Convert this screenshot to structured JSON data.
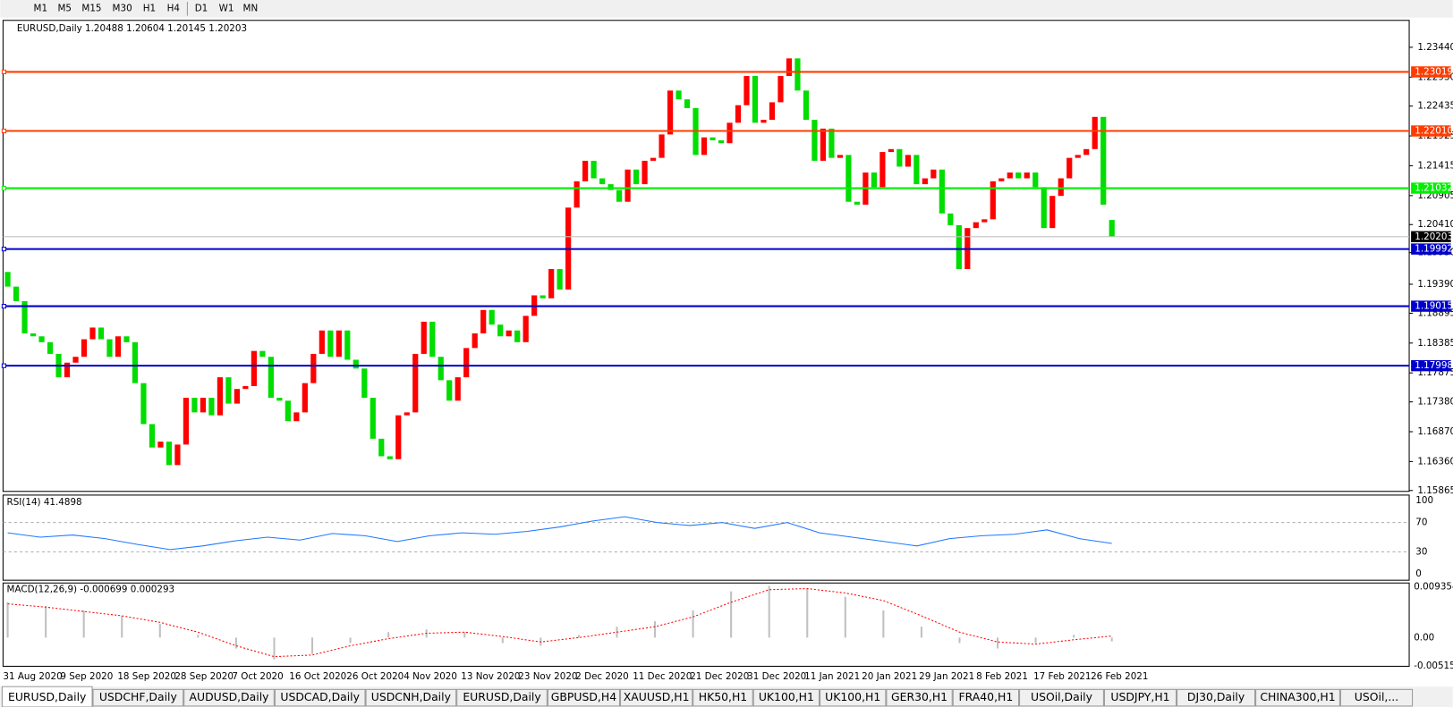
{
  "toolbar": {
    "timeframes": [
      "M1",
      "M5",
      "M15",
      "M30",
      "H1",
      "H4",
      "D1",
      "W1",
      "MN"
    ]
  },
  "chart": {
    "header": "EURUSD,Daily  1.20488 1.20604 1.20145 1.20203",
    "ylim": [
      1.1585,
      1.239
    ],
    "yticks": [
      {
        "value": 1.2344,
        "label": "1.23440"
      },
      {
        "value": 1.2293,
        "label": "1.22930"
      },
      1.22435,
      1.21925,
      1.21415,
      1.20905,
      {
        "value": 1.2041,
        "label": "1.20410"
      },
      {
        "value": 1.1993,
        "label": "1.19930"
      },
      {
        "value": 1.1939,
        "label": "1.19390"
      },
      1.18895,
      1.18385,
      1.17875,
      {
        "value": 1.1738,
        "label": "1.17380"
      },
      {
        "value": 1.1687,
        "label": "1.16870"
      },
      {
        "value": 1.1636,
        "label": "1.16360"
      },
      1.15865
    ],
    "up_color": "#ff0000",
    "down_color": "#00dd00",
    "candles": [
      [
        1.196,
        1.1935
      ],
      [
        1.1935,
        1.191
      ],
      [
        1.191,
        1.1855
      ],
      [
        1.1855,
        1.185
      ],
      [
        1.185,
        1.184
      ],
      [
        1.184,
        1.182
      ],
      [
        1.182,
        1.178
      ],
      [
        1.178,
        1.1805
      ],
      [
        1.1805,
        1.1815
      ],
      [
        1.1815,
        1.1845
      ],
      [
        1.1845,
        1.1865
      ],
      [
        1.1865,
        1.1845
      ],
      [
        1.1845,
        1.1815
      ],
      [
        1.1815,
        1.185
      ],
      [
        1.185,
        1.184
      ],
      [
        1.184,
        1.177
      ],
      [
        1.177,
        1.17
      ],
      [
        1.17,
        1.166
      ],
      [
        1.166,
        1.167
      ],
      [
        1.167,
        1.163
      ],
      [
        1.163,
        1.1665
      ],
      [
        1.1665,
        1.1745
      ],
      [
        1.1745,
        1.172
      ],
      [
        1.172,
        1.1745
      ],
      [
        1.1745,
        1.1715
      ],
      [
        1.1715,
        1.178
      ],
      [
        1.178,
        1.1735
      ],
      [
        1.1735,
        1.176
      ],
      [
        1.176,
        1.1765
      ],
      [
        1.1765,
        1.1825
      ],
      [
        1.1825,
        1.1815
      ],
      [
        1.1815,
        1.1745
      ],
      [
        1.1745,
        1.174
      ],
      [
        1.174,
        1.1705
      ],
      [
        1.1705,
        1.172
      ],
      [
        1.172,
        1.177
      ],
      [
        1.177,
        1.182
      ],
      [
        1.182,
        1.186
      ],
      [
        1.186,
        1.1815
      ],
      [
        1.1815,
        1.186
      ],
      [
        1.186,
        1.181
      ],
      [
        1.181,
        1.1795
      ],
      [
        1.1795,
        1.1745
      ],
      [
        1.1745,
        1.1675
      ],
      [
        1.1675,
        1.1645
      ],
      [
        1.1645,
        1.164
      ],
      [
        1.164,
        1.1715
      ],
      [
        1.1715,
        1.172
      ],
      [
        1.172,
        1.182
      ],
      [
        1.182,
        1.1875
      ],
      [
        1.1875,
        1.1815
      ],
      [
        1.1815,
        1.1775
      ],
      [
        1.1775,
        1.174
      ],
      [
        1.174,
        1.178
      ],
      [
        1.178,
        1.183
      ],
      [
        1.183,
        1.1855
      ],
      [
        1.1855,
        1.1895
      ],
      [
        1.1895,
        1.187
      ],
      [
        1.187,
        1.185
      ],
      [
        1.185,
        1.186
      ],
      [
        1.186,
        1.184
      ],
      [
        1.184,
        1.1885
      ],
      [
        1.1885,
        1.192
      ],
      [
        1.192,
        1.1915
      ],
      [
        1.1915,
        1.1965
      ],
      [
        1.1965,
        1.193
      ],
      [
        1.193,
        1.207
      ],
      [
        1.207,
        1.2115
      ],
      [
        1.2115,
        1.215
      ],
      [
        1.215,
        1.212
      ],
      [
        1.212,
        1.211
      ],
      [
        1.211,
        1.21
      ],
      [
        1.21,
        1.208
      ],
      [
        1.208,
        1.2135
      ],
      [
        1.2135,
        1.211
      ],
      [
        1.211,
        1.215
      ],
      [
        1.215,
        1.2155
      ],
      [
        1.2155,
        1.2195
      ],
      [
        1.2195,
        1.227
      ],
      [
        1.227,
        1.2255
      ],
      [
        1.2255,
        1.224
      ],
      [
        1.224,
        1.216
      ],
      [
        1.216,
        1.219
      ],
      [
        1.219,
        1.2185
      ],
      [
        1.2185,
        1.218
      ],
      [
        1.218,
        1.2215
      ],
      [
        1.2215,
        1.2245
      ],
      [
        1.2245,
        1.2295
      ],
      [
        1.2295,
        1.2215
      ],
      [
        1.2215,
        1.222
      ],
      [
        1.222,
        1.225
      ],
      [
        1.225,
        1.2295
      ],
      [
        1.2295,
        1.2325
      ],
      [
        1.2325,
        1.227
      ],
      [
        1.227,
        1.222
      ],
      [
        1.222,
        1.215
      ],
      [
        1.215,
        1.2205
      ],
      [
        1.2205,
        1.2155
      ],
      [
        1.2155,
        1.216
      ],
      [
        1.216,
        1.208
      ],
      [
        1.208,
        1.2075
      ],
      [
        1.2075,
        1.213
      ],
      [
        1.213,
        1.2105
      ],
      [
        1.2105,
        1.2165
      ],
      [
        1.2165,
        1.217
      ],
      [
        1.217,
        1.214
      ],
      [
        1.214,
        1.216
      ],
      [
        1.216,
        1.211
      ],
      [
        1.211,
        1.212
      ],
      [
        1.212,
        1.2135
      ],
      [
        1.2135,
        1.206
      ],
      [
        1.206,
        1.204
      ],
      [
        1.204,
        1.1965
      ],
      [
        1.1965,
        1.2035
      ],
      [
        1.2035,
        1.2045
      ],
      [
        1.2045,
        1.205
      ],
      [
        1.205,
        1.2115
      ],
      [
        1.2115,
        1.212
      ],
      [
        1.212,
        1.213
      ],
      [
        1.213,
        1.212
      ],
      [
        1.212,
        1.213
      ],
      [
        1.213,
        1.2105
      ],
      [
        1.2105,
        1.2035
      ],
      [
        1.2035,
        1.209
      ],
      [
        1.209,
        1.212
      ],
      [
        1.212,
        1.2155
      ],
      [
        1.2155,
        1.216
      ],
      [
        1.216,
        1.217
      ],
      [
        1.217,
        1.2225
      ],
      [
        1.2225,
        1.2075
      ],
      [
        1.20488,
        1.20203
      ]
    ],
    "levels": [
      {
        "value": 1.23019,
        "color": "#ff3c00"
      },
      {
        "value": 1.2201,
        "label": "1.22010",
        "color": "#ff3c00"
      },
      {
        "value": 1.21032,
        "color": "#00ee00"
      },
      {
        "value": 1.19992,
        "color": "#0000cc"
      },
      {
        "value": 1.19015,
        "color": "#0000cc"
      },
      {
        "value": 1.17998,
        "color": "#0000cc"
      }
    ],
    "current_price": 1.20203,
    "x_labels": [
      "31 Aug 2020",
      "9 Sep 2020",
      "18 Sep 2020",
      "28 Sep 2020",
      "7 Oct 2020",
      "16 Oct 2020",
      "26 Oct 2020",
      "4 Nov 2020",
      "13 Nov 2020",
      "23 Nov 2020",
      "2 Dec 2020",
      "11 Dec 2020",
      "21 Dec 2020",
      "31 Dec 2020",
      "11 Jan 2021",
      "20 Jan 2021",
      "29 Jan 2021",
      "8 Feb 2021",
      "17 Feb 2021",
      "26 Feb 2021"
    ]
  },
  "rsi": {
    "header": "RSI(14) 41.4898",
    "ylim": [
      -8.9,
      107.6
    ],
    "yticks": [
      100,
      70,
      30,
      0
    ],
    "color": "#1e78ff",
    "values": [
      56,
      50,
      53,
      48,
      40,
      33,
      38,
      45,
      50,
      46,
      55,
      52,
      44,
      52,
      56,
      54,
      58,
      64,
      72,
      78,
      70,
      66,
      70,
      62,
      70,
      56,
      50,
      44,
      38,
      48,
      52,
      54,
      60,
      48,
      41.4898
    ]
  },
  "macd": {
    "header": "MACD(12,26,9) -0.000699 0.000293",
    "ylim": [
      -0.00527,
      0.01003
    ],
    "yticks": [
      0.009354,
      {
        "value": 0,
        "label": "0.00"
      },
      -0.005156
    ],
    "histogram_color": "#c0c0c0",
    "signal_color": "#ff0000",
    "histogram": [
      0.0065,
      0.0058,
      0.005,
      0.004,
      0.0025,
      0.0005,
      -0.002,
      -0.004,
      -0.003,
      -0.001,
      0.001,
      0.0015,
      0.001,
      -0.001,
      -0.0015,
      0.0005,
      0.002,
      0.003,
      0.005,
      0.0085,
      0.0095,
      0.009,
      0.0075,
      0.005,
      0.002,
      -0.001,
      -0.002,
      -0.001,
      0.0005,
      -0.000699
    ],
    "signal": [
      0.0062,
      0.0056,
      0.0048,
      0.004,
      0.0028,
      0.001,
      -0.0015,
      -0.0035,
      -0.0032,
      -0.0015,
      -0.0002,
      0.0008,
      0.001,
      0.0002,
      -0.0008,
      0,
      0.001,
      0.002,
      0.0038,
      0.0065,
      0.0088,
      0.009,
      0.0082,
      0.0068,
      0.004,
      0.001,
      -0.0008,
      -0.0012,
      -0.0004,
      0.000293
    ]
  },
  "tabs": [
    "EURUSD,Daily",
    "USDCHF,Daily",
    "AUDUSD,Daily",
    "USDCAD,Daily",
    "USDCNH,Daily",
    "EURUSD,Daily",
    "GBPUSD,H4",
    "XAUUSD,H1",
    "HK50,H1",
    "UK100,H1",
    "UK100,H1",
    "GER30,H1",
    "FRA40,H1",
    "USOil,Daily",
    "USDJPY,H1",
    "DJ30,Daily",
    "CHINA300,H1",
    "USOil,..."
  ]
}
